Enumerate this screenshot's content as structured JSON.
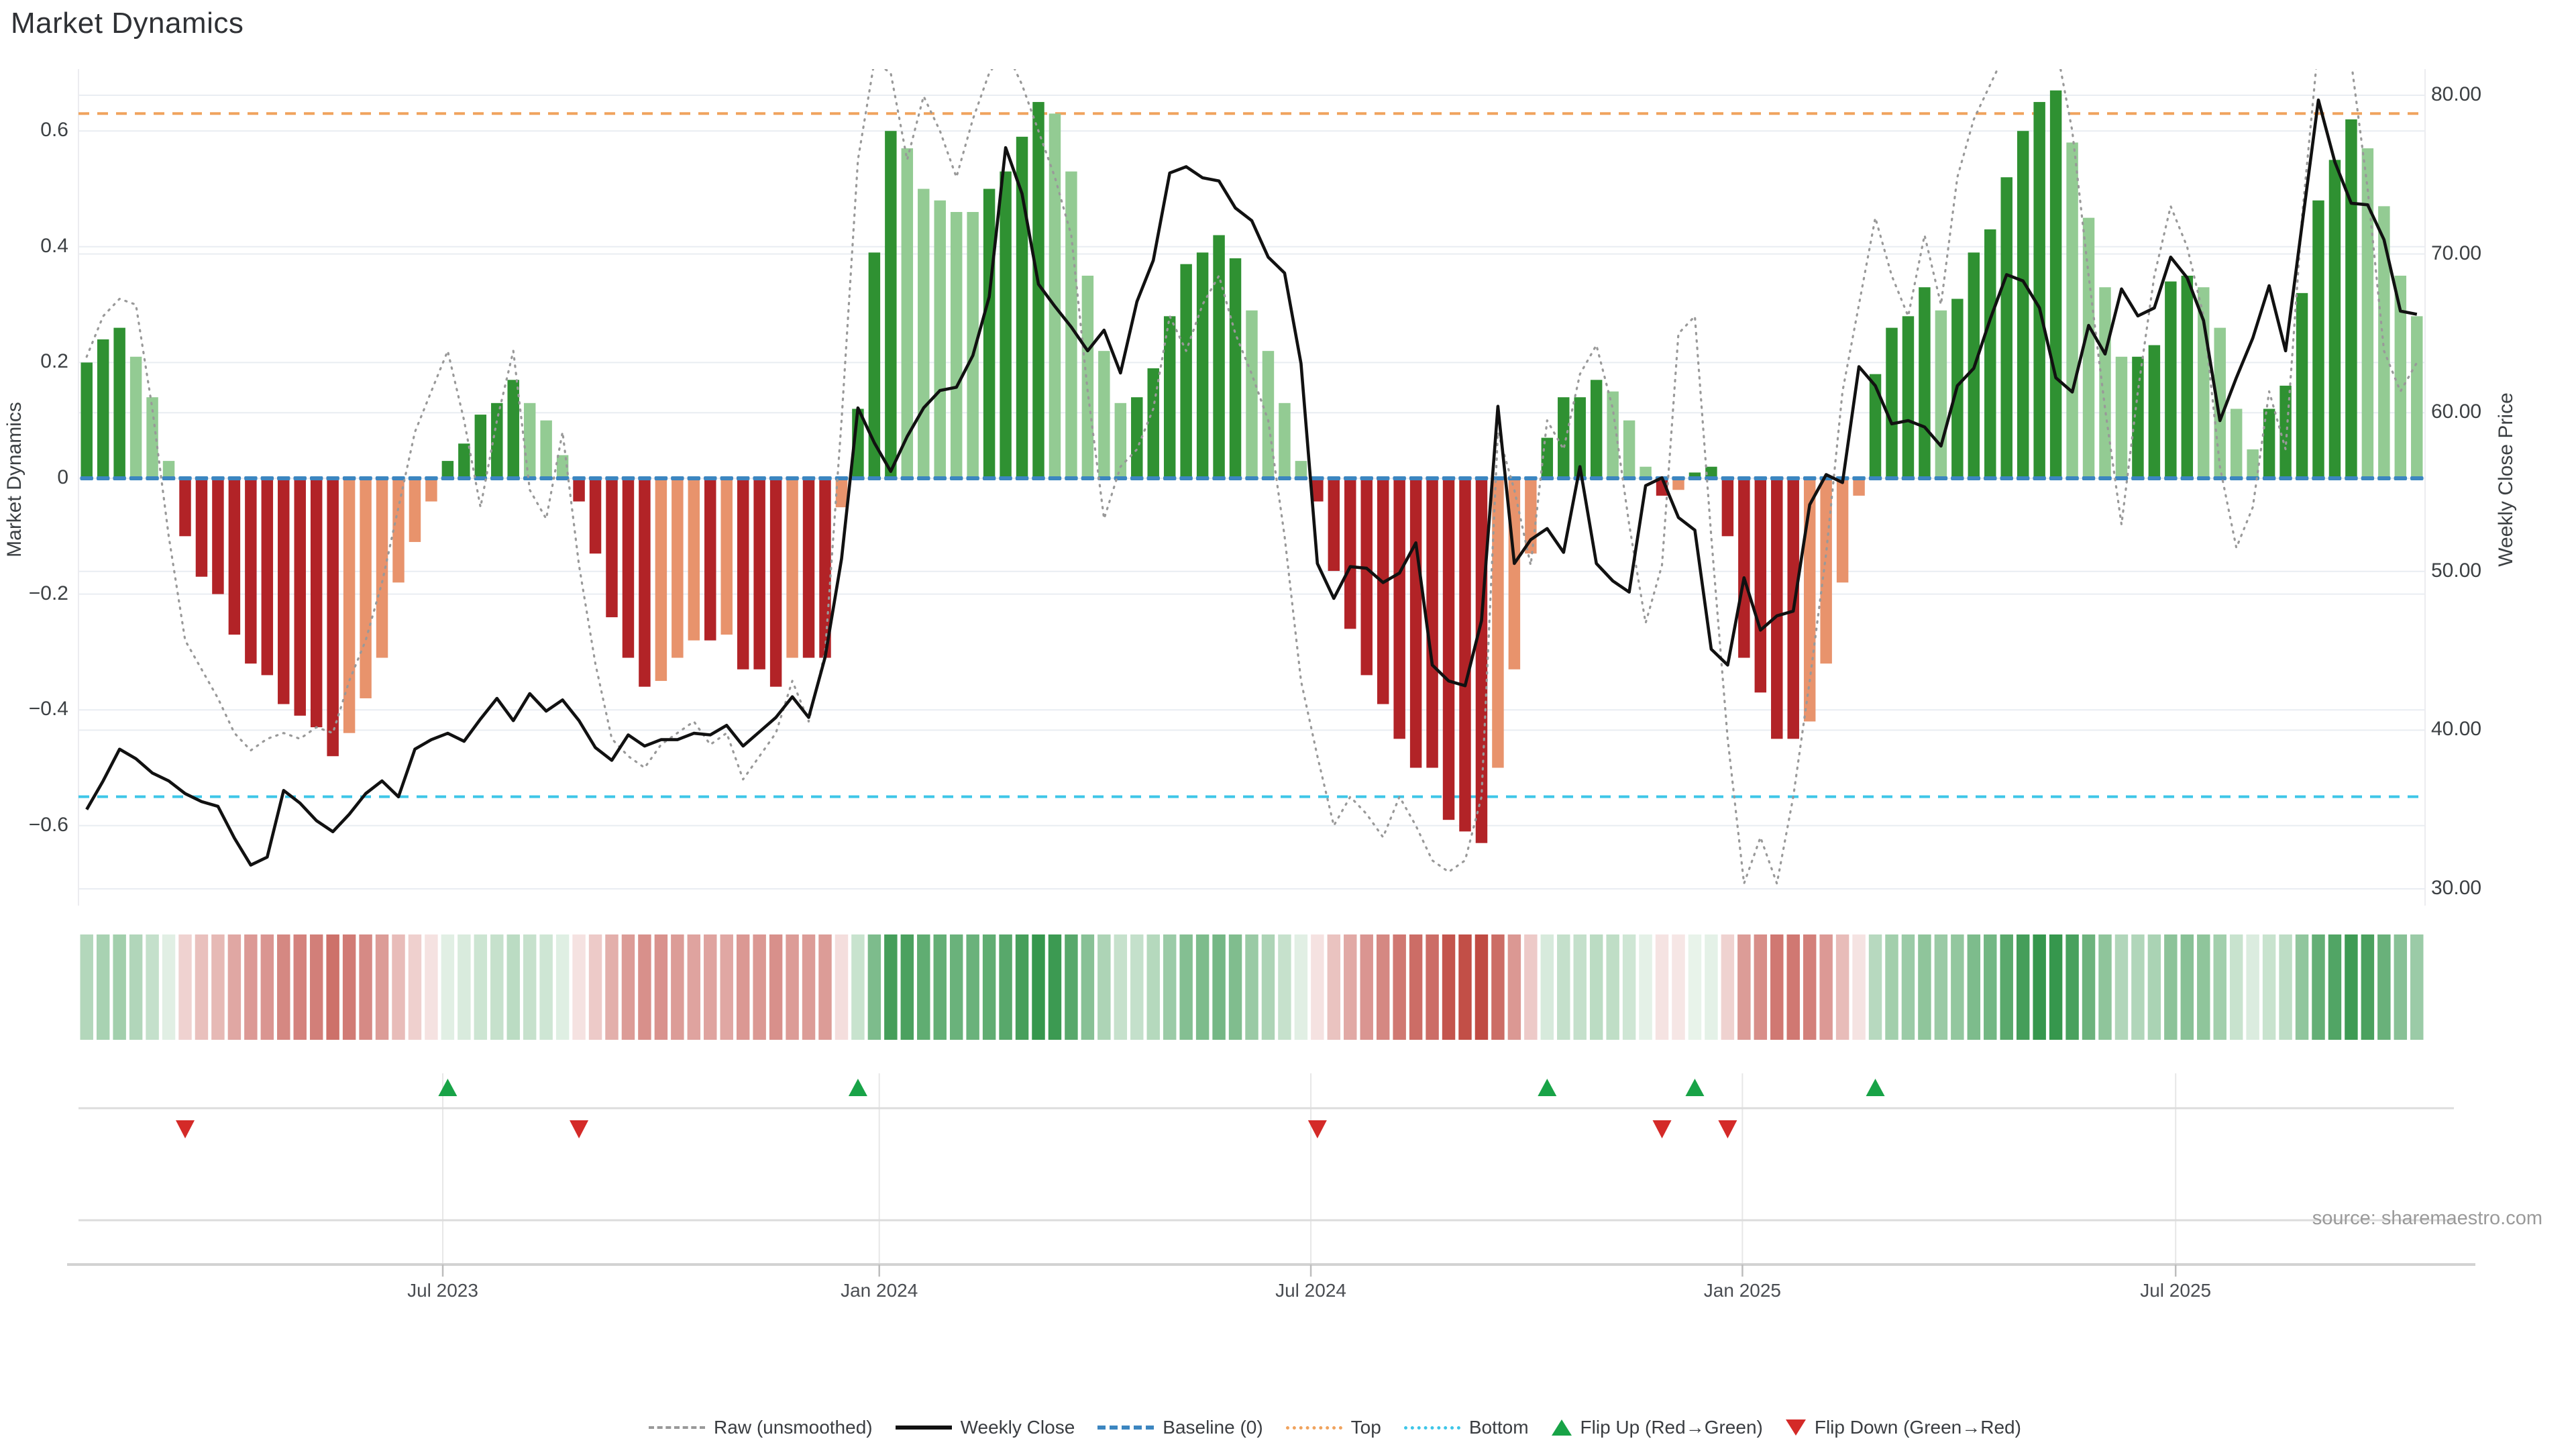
{
  "title": "Market Dynamics",
  "source": "source: sharemaestro.com",
  "left_axis": {
    "label": "Market Dynamics",
    "tick_labels": [
      "0.6",
      "0.4",
      "0.2",
      "0",
      "−0.2",
      "−0.4",
      "−0.6"
    ],
    "tick_values": [
      0.6,
      0.4,
      0.2,
      0,
      -0.2,
      -0.4,
      -0.6
    ]
  },
  "right_axis": {
    "label": "Weekly Close Price",
    "tick_labels": [
      "80.00",
      "70.00",
      "60.00",
      "50.00",
      "40.00",
      "30.00"
    ],
    "tick_values": [
      80,
      70,
      60,
      50,
      40,
      30
    ]
  },
  "x_axis": {
    "tick_labels": [
      "Jul 2023",
      "Jan 2024",
      "Jul 2024",
      "Jan 2025",
      "Jul 2025"
    ],
    "tick_weeks": [
      22.7,
      49.3,
      75.6,
      101.9,
      128.3
    ]
  },
  "legend": [
    {
      "label": "Raw (unsmoothed)",
      "type": "raw"
    },
    {
      "label": "Weekly Close",
      "type": "close"
    },
    {
      "label": "Baseline (0)",
      "type": "baseline"
    },
    {
      "label": "Top",
      "type": "top"
    },
    {
      "label": "Bottom",
      "type": "bottom"
    },
    {
      "label": "Flip Up (Red→Green)",
      "type": "flip-up"
    },
    {
      "label": "Flip Down (Green→Red)",
      "type": "flip-down"
    }
  ],
  "colors": {
    "bar_dark_green": "#2f9132",
    "bar_light_green": "#93cb93",
    "bar_dark_red": "#b22327",
    "bar_salmon": "#e8936c",
    "close_line": "#111111",
    "raw_line": "#999999",
    "baseline": "#3c86c0",
    "top_line": "#f0a35e",
    "bottom_line": "#3ec6e8",
    "flip_up": "#18a347",
    "flip_down": "#d42a28",
    "heat_green": "#2b9143",
    "heat_red": "#bb3c33",
    "grid": "#e9edf2",
    "lane_line": "#dcdcdc",
    "axis_text": "#3c4043",
    "muted_text": "#9a9a9a"
  },
  "chart_data": {
    "type": "bar",
    "title": "Market Dynamics",
    "ylabel_left": "Market Dynamics",
    "ylabel_right": "Weekly Close Price",
    "ylim_left": [
      -0.72,
      0.72
    ],
    "ylim_right": [
      28.5,
      81.5
    ],
    "grid": true,
    "legend_position": "bottom-center",
    "weeks": 143,
    "baseline": 0,
    "top_threshold": 0.63,
    "bottom_threshold": -0.55,
    "bars": {
      "name": "Market Dynamics (smoothed)",
      "values": [
        0.2,
        0.24,
        0.26,
        0.21,
        0.14,
        0.03,
        -0.1,
        -0.17,
        -0.2,
        -0.27,
        -0.32,
        -0.34,
        -0.39,
        -0.41,
        -0.43,
        -0.48,
        -0.44,
        -0.38,
        -0.31,
        -0.18,
        -0.11,
        -0.04,
        0.03,
        0.06,
        0.11,
        0.13,
        0.17,
        0.13,
        0.1,
        0.04,
        -0.04,
        -0.13,
        -0.24,
        -0.31,
        -0.36,
        -0.35,
        -0.31,
        -0.28,
        -0.28,
        -0.27,
        -0.33,
        -0.33,
        -0.36,
        -0.31,
        -0.31,
        -0.31,
        -0.05,
        0.12,
        0.39,
        0.6,
        0.57,
        0.5,
        0.48,
        0.46,
        0.46,
        0.5,
        0.53,
        0.59,
        0.65,
        0.63,
        0.53,
        0.35,
        0.22,
        0.13,
        0.14,
        0.19,
        0.28,
        0.37,
        0.39,
        0.42,
        0.38,
        0.29,
        0.22,
        0.13,
        0.03,
        -0.04,
        -0.16,
        -0.26,
        -0.34,
        -0.39,
        -0.45,
        -0.5,
        -0.5,
        -0.59,
        -0.61,
        -0.63,
        -0.5,
        -0.33,
        -0.13,
        0.07,
        0.14,
        0.14,
        0.17,
        0.15,
        0.1,
        0.02,
        -0.03,
        -0.02,
        0.01,
        0.02,
        -0.1,
        -0.31,
        -0.37,
        -0.45,
        -0.45,
        -0.42,
        -0.32,
        -0.18,
        -0.03,
        0.18,
        0.26,
        0.28,
        0.33,
        0.29,
        0.31,
        0.39,
        0.43,
        0.52,
        0.6,
        0.65,
        0.67,
        0.58,
        0.45,
        0.33,
        0.21,
        0.21,
        0.23,
        0.34,
        0.35,
        0.33,
        0.26,
        0.12,
        0.05,
        0.12,
        0.16,
        0.32,
        0.48,
        0.55,
        0.62,
        0.57,
        0.47,
        0.35,
        0.28
      ],
      "tones": [
        "dg",
        "dg",
        "dg",
        "lg",
        "lg",
        "lg",
        "dr",
        "dr",
        "dr",
        "dr",
        "dr",
        "dr",
        "dr",
        "dr",
        "dr",
        "dr",
        "sr",
        "sr",
        "sr",
        "sr",
        "sr",
        "sr",
        "dg",
        "dg",
        "dg",
        "dg",
        "dg",
        "lg",
        "lg",
        "lg",
        "dr",
        "dr",
        "dr",
        "dr",
        "dr",
        "sr",
        "sr",
        "sr",
        "dr",
        "sr",
        "dr",
        "dr",
        "dr",
        "sr",
        "dr",
        "dr",
        "sr",
        "dg",
        "dg",
        "dg",
        "lg",
        "lg",
        "lg",
        "lg",
        "lg",
        "dg",
        "dg",
        "dg",
        "dg",
        "lg",
        "lg",
        "lg",
        "lg",
        "lg",
        "dg",
        "dg",
        "dg",
        "dg",
        "dg",
        "dg",
        "dg",
        "lg",
        "lg",
        "lg",
        "lg",
        "dr",
        "dr",
        "dr",
        "dr",
        "dr",
        "dr",
        "dr",
        "dr",
        "dr",
        "dr",
        "dr",
        "sr",
        "sr",
        "sr",
        "dg",
        "dg",
        "dg",
        "dg",
        "lg",
        "lg",
        "lg",
        "dr",
        "sr",
        "dg",
        "dg",
        "dr",
        "dr",
        "dr",
        "dr",
        "dr",
        "sr",
        "sr",
        "sr",
        "sr",
        "dg",
        "dg",
        "dg",
        "dg",
        "lg",
        "dg",
        "dg",
        "dg",
        "dg",
        "dg",
        "dg",
        "dg",
        "lg",
        "lg",
        "lg",
        "lg",
        "dg",
        "dg",
        "dg",
        "dg",
        "lg",
        "lg",
        "lg",
        "lg",
        "dg",
        "dg",
        "dg",
        "dg",
        "dg",
        "dg",
        "lg",
        "lg",
        "lg",
        "lg"
      ]
    },
    "series": [
      {
        "name": "Weekly Close",
        "axis": "right",
        "values": [
          35.0,
          36.8,
          38.8,
          38.2,
          37.3,
          36.8,
          36.0,
          35.5,
          35.2,
          33.2,
          31.5,
          32.0,
          36.2,
          35.4,
          34.3,
          33.6,
          34.7,
          36.0,
          36.8,
          35.8,
          38.8,
          39.4,
          39.8,
          39.3,
          40.7,
          42.0,
          40.6,
          42.3,
          41.2,
          41.9,
          40.6,
          38.9,
          38.1,
          39.7,
          39.0,
          39.4,
          39.4,
          39.8,
          39.7,
          40.3,
          39.0,
          39.9,
          40.8,
          42.1,
          40.8,
          44.6,
          50.8,
          60.3,
          58.1,
          56.3,
          58.5,
          60.3,
          61.4,
          61.6,
          63.6,
          67.3,
          76.7,
          73.8,
          68.1,
          66.7,
          65.4,
          63.9,
          65.2,
          62.5,
          67.0,
          69.6,
          75.1,
          75.5,
          74.8,
          74.6,
          72.9,
          72.1,
          69.8,
          68.8,
          63.1,
          50.5,
          48.3,
          50.3,
          50.2,
          49.3,
          49.9,
          51.8,
          44.1,
          43.1,
          42.8,
          46.9,
          60.4,
          50.5,
          52.0,
          52.7,
          51.2,
          56.6,
          50.5,
          49.4,
          48.7,
          55.4,
          55.9,
          53.4,
          52.6,
          45.1,
          44.1,
          49.6,
          46.3,
          47.2,
          47.5,
          54.2,
          56.1,
          55.6,
          62.9,
          61.7,
          59.3,
          59.5,
          59.1,
          57.9,
          61.7,
          62.8,
          65.9,
          68.7,
          68.3,
          66.6,
          62.2,
          61.3,
          65.5,
          63.7,
          67.8,
          66.1,
          66.6,
          69.8,
          68.5,
          65.8,
          59.5,
          62.2,
          64.7,
          68.0,
          63.9,
          71.8,
          79.7,
          75.8,
          73.2,
          73.1,
          70.9,
          66.4,
          66.2
        ]
      },
      {
        "name": "Raw (unsmoothed)",
        "axis": "left",
        "values": [
          0.21,
          0.28,
          0.31,
          0.3,
          0.12,
          -0.1,
          -0.28,
          -0.33,
          -0.38,
          -0.44,
          -0.47,
          -0.45,
          -0.44,
          -0.45,
          -0.43,
          -0.44,
          -0.35,
          -0.28,
          -0.18,
          -0.05,
          0.08,
          0.15,
          0.22,
          0.1,
          -0.05,
          0.1,
          0.22,
          -0.02,
          -0.07,
          0.08,
          -0.15,
          -0.32,
          -0.45,
          -0.48,
          -0.5,
          -0.46,
          -0.44,
          -0.42,
          -0.46,
          -0.44,
          -0.52,
          -0.48,
          -0.44,
          -0.35,
          -0.42,
          -0.3,
          0.1,
          0.55,
          0.72,
          0.7,
          0.55,
          0.66,
          0.6,
          0.52,
          0.62,
          0.7,
          0.74,
          0.68,
          0.6,
          0.52,
          0.42,
          0.15,
          -0.07,
          0.02,
          0.05,
          0.12,
          0.28,
          0.22,
          0.3,
          0.35,
          0.25,
          0.18,
          0.1,
          -0.1,
          -0.35,
          -0.48,
          -0.6,
          -0.55,
          -0.58,
          -0.62,
          -0.55,
          -0.6,
          -0.66,
          -0.68,
          -0.66,
          -0.55,
          0.08,
          -0.02,
          -0.15,
          0.1,
          0.05,
          0.18,
          0.23,
          0.12,
          -0.08,
          -0.25,
          -0.15,
          0.25,
          0.28,
          -0.1,
          -0.45,
          -0.7,
          -0.62,
          -0.7,
          -0.55,
          -0.35,
          -0.13,
          0.15,
          0.3,
          0.45,
          0.35,
          0.28,
          0.42,
          0.3,
          0.52,
          0.62,
          0.68,
          0.74,
          0.78,
          0.8,
          0.75,
          0.6,
          0.35,
          0.12,
          -0.08,
          0.15,
          0.35,
          0.47,
          0.4,
          0.28,
          0.02,
          -0.12,
          -0.05,
          0.15,
          0.05,
          0.45,
          0.75,
          0.8,
          0.72,
          0.5,
          0.22,
          0.15,
          0.2
        ]
      }
    ],
    "flip_up_weeks": [
      23,
      48,
      90,
      99,
      110
    ],
    "flip_down_weeks": [
      7,
      31,
      76,
      97,
      101
    ],
    "heatmap": "mirror of bar values as green/red intensity strip"
  }
}
